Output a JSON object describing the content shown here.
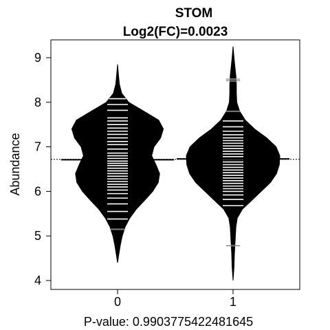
{
  "chart_data": {
    "type": "beanplot",
    "title": "STOM",
    "subtitle": "Log2(FC)=0.0023",
    "xlabel": "P-value: 0.9903775422481645",
    "ylabel": "Abundance",
    "categories": [
      "0",
      "1"
    ],
    "ylim": [
      3.8,
      9.4
    ],
    "yticks": [
      4,
      5,
      6,
      7,
      8,
      9
    ],
    "overall_mean": 6.72,
    "colors": {
      "bean": "#000000",
      "points": "#ffffff",
      "background": "#ffffff"
    },
    "series": [
      {
        "category": "0",
        "mean": 6.71,
        "density_range": [
          4.4,
          8.85
        ],
        "density": [
          [
            4.4,
            0.0
          ],
          [
            4.6,
            0.03
          ],
          [
            4.8,
            0.06
          ],
          [
            5.0,
            0.1
          ],
          [
            5.2,
            0.16
          ],
          [
            5.4,
            0.26
          ],
          [
            5.6,
            0.4
          ],
          [
            5.8,
            0.58
          ],
          [
            6.0,
            0.75
          ],
          [
            6.2,
            0.87
          ],
          [
            6.4,
            0.9
          ],
          [
            6.6,
            0.82
          ],
          [
            6.8,
            0.73
          ],
          [
            7.0,
            0.78
          ],
          [
            7.2,
            0.92
          ],
          [
            7.4,
            0.98
          ],
          [
            7.6,
            0.88
          ],
          [
            7.8,
            0.56
          ],
          [
            8.0,
            0.24
          ],
          [
            8.2,
            0.09
          ],
          [
            8.4,
            0.04
          ],
          [
            8.6,
            0.02
          ],
          [
            8.85,
            0.0
          ]
        ],
        "points": [
          5.15,
          5.38,
          5.55,
          5.72,
          5.85,
          5.95,
          6.03,
          6.1,
          6.16,
          6.22,
          6.28,
          6.34,
          6.4,
          6.46,
          6.52,
          6.58,
          6.63,
          6.68,
          6.74,
          6.8,
          6.86,
          6.95,
          7.05,
          7.12,
          7.2,
          7.28,
          7.35,
          7.42,
          7.5,
          7.58,
          7.65,
          7.82,
          7.95,
          8.08
        ]
      },
      {
        "category": "1",
        "mean": 6.73,
        "density_range": [
          4.0,
          9.25
        ],
        "density": [
          [
            4.0,
            0.0
          ],
          [
            4.3,
            0.02
          ],
          [
            4.6,
            0.03
          ],
          [
            4.8,
            0.04
          ],
          [
            5.0,
            0.05
          ],
          [
            5.2,
            0.06
          ],
          [
            5.4,
            0.09
          ],
          [
            5.6,
            0.2
          ],
          [
            5.8,
            0.4
          ],
          [
            6.0,
            0.6
          ],
          [
            6.2,
            0.8
          ],
          [
            6.4,
            0.93
          ],
          [
            6.6,
            0.99
          ],
          [
            6.8,
            1.0
          ],
          [
            7.0,
            0.92
          ],
          [
            7.2,
            0.72
          ],
          [
            7.4,
            0.46
          ],
          [
            7.6,
            0.26
          ],
          [
            7.8,
            0.14
          ],
          [
            8.0,
            0.08
          ],
          [
            8.2,
            0.07
          ],
          [
            8.4,
            0.07
          ],
          [
            8.6,
            0.06
          ],
          [
            8.8,
            0.04
          ],
          [
            9.0,
            0.02
          ],
          [
            9.25,
            0.0
          ]
        ],
        "points": [
          4.78,
          5.68,
          5.82,
          5.92,
          6.0,
          6.06,
          6.12,
          6.18,
          6.24,
          6.3,
          6.36,
          6.42,
          6.48,
          6.54,
          6.6,
          6.66,
          6.72,
          6.78,
          6.84,
          6.9,
          6.96,
          7.02,
          7.08,
          7.14,
          7.2,
          7.27,
          7.35,
          7.45,
          7.58,
          7.8,
          8.48,
          8.52
        ]
      }
    ]
  }
}
